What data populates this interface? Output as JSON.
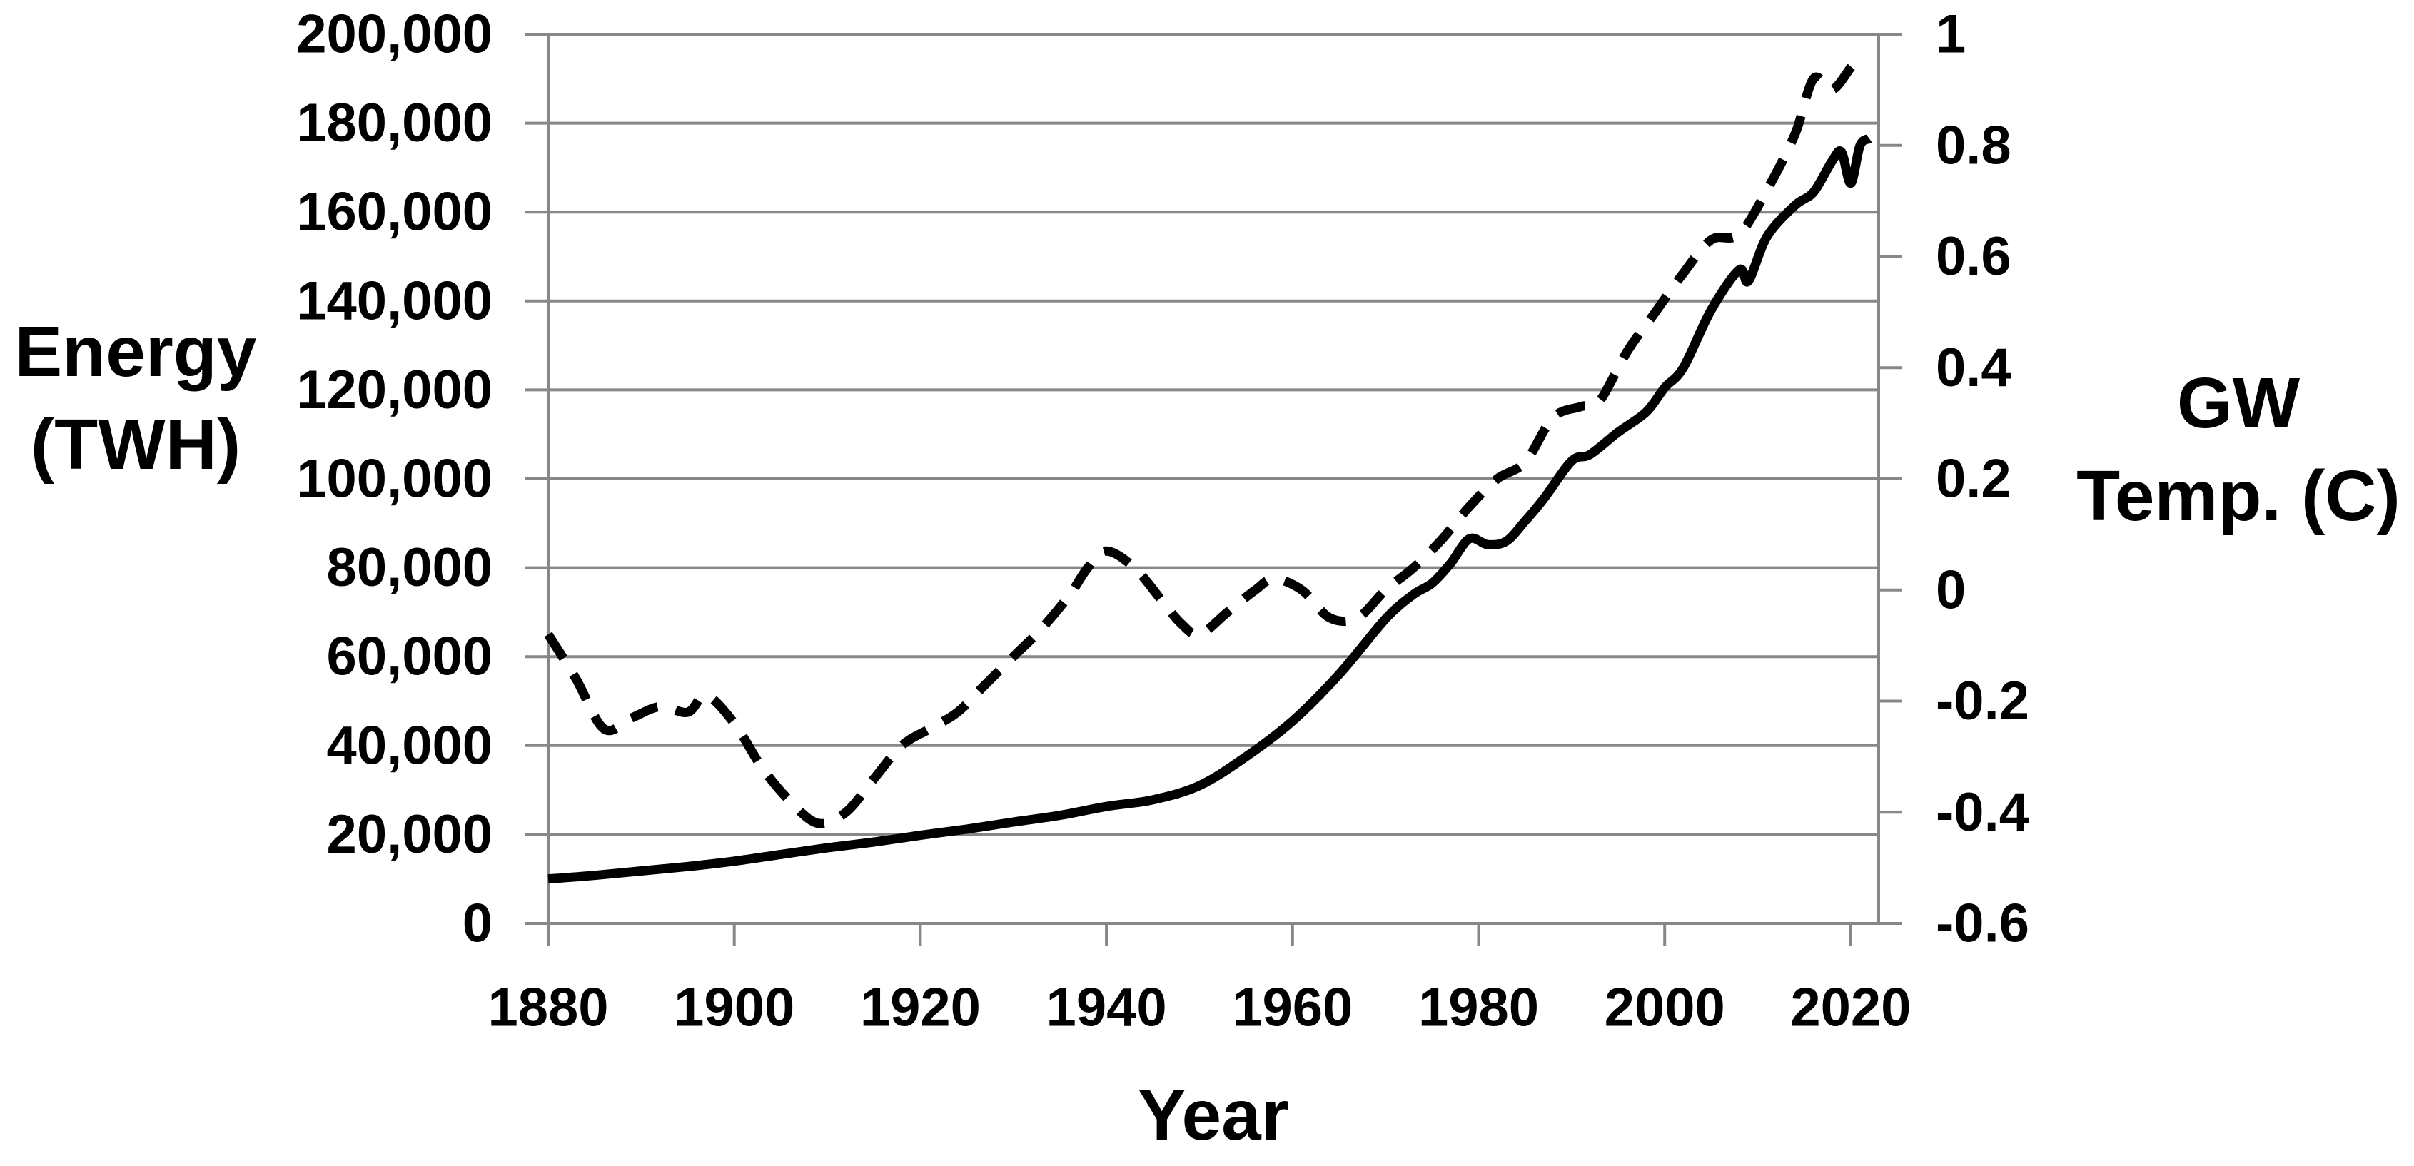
{
  "axes": {
    "left": {
      "title_line1": "Energy",
      "title_line2": "(TWH)",
      "labels": [
        "200,000",
        "180,000",
        "160,000",
        "140,000",
        "120,000",
        "100,000",
        "80,000",
        "60,000",
        "40,000",
        "20,000",
        "0"
      ]
    },
    "right": {
      "title_line1": "GW",
      "title_line2": "Temp. (C)",
      "labels": [
        "1",
        "0.8",
        "0.6",
        "0.4",
        "0.2",
        "0",
        "-0.2",
        "-0.4",
        "-0.6"
      ]
    },
    "x": {
      "title": "Year",
      "labels": [
        "1880",
        "1900",
        "1920",
        "1940",
        "1960",
        "1980",
        "2000",
        "2020"
      ]
    }
  },
  "colors": {
    "background": "#ffffff",
    "grid": "#878787",
    "axis": "#878787",
    "series": "#000000",
    "text": "#000000"
  },
  "chart_data": {
    "type": "line",
    "title": "",
    "xlabel": "Year",
    "left_ylabel": "Energy (TWH)",
    "right_ylabel": "GW Temp. (C)",
    "xlim": [
      1880,
      2023
    ],
    "left_ylim": [
      0,
      200000
    ],
    "right_ylim": [
      -0.6,
      1.0
    ],
    "grid": true,
    "legend": "none",
    "series": [
      {
        "name": "Energy (TWH)",
        "axis": "left",
        "style": "solid",
        "color": "#000000",
        "points": [
          [
            1880,
            10000
          ],
          [
            1885,
            10800
          ],
          [
            1890,
            11800
          ],
          [
            1895,
            12800
          ],
          [
            1900,
            14000
          ],
          [
            1905,
            15500
          ],
          [
            1910,
            17000
          ],
          [
            1915,
            18300
          ],
          [
            1920,
            19800
          ],
          [
            1925,
            21200
          ],
          [
            1930,
            22800
          ],
          [
            1935,
            24300
          ],
          [
            1940,
            26300
          ],
          [
            1945,
            27800
          ],
          [
            1950,
            31000
          ],
          [
            1955,
            37500
          ],
          [
            1960,
            45500
          ],
          [
            1965,
            56000
          ],
          [
            1970,
            68500
          ],
          [
            1973,
            74000
          ],
          [
            1975,
            76500
          ],
          [
            1977,
            81000
          ],
          [
            1979,
            86500
          ],
          [
            1981,
            85200
          ],
          [
            1983,
            86000
          ],
          [
            1985,
            90500
          ],
          [
            1987,
            95500
          ],
          [
            1990,
            104000
          ],
          [
            1992,
            105500
          ],
          [
            1995,
            110500
          ],
          [
            1998,
            115000
          ],
          [
            2000,
            120500
          ],
          [
            2002,
            125000
          ],
          [
            2005,
            138000
          ],
          [
            2008,
            147000
          ],
          [
            2009,
            144500
          ],
          [
            2011,
            154500
          ],
          [
            2014,
            161500
          ],
          [
            2016,
            164500
          ],
          [
            2018,
            171500
          ],
          [
            2019,
            173500
          ],
          [
            2020,
            166500
          ],
          [
            2021,
            175000
          ],
          [
            2022,
            176500
          ]
        ]
      },
      {
        "name": "GW Temp. (C)",
        "axis": "right",
        "style": "dashed",
        "color": "#000000",
        "points": [
          [
            1880,
            -0.08
          ],
          [
            1883,
            -0.16
          ],
          [
            1886,
            -0.25
          ],
          [
            1889,
            -0.23
          ],
          [
            1892,
            -0.21
          ],
          [
            1895,
            -0.22
          ],
          [
            1897,
            -0.19
          ],
          [
            1900,
            -0.24
          ],
          [
            1903,
            -0.32
          ],
          [
            1906,
            -0.38
          ],
          [
            1909,
            -0.42
          ],
          [
            1912,
            -0.4
          ],
          [
            1915,
            -0.34
          ],
          [
            1918,
            -0.28
          ],
          [
            1921,
            -0.25
          ],
          [
            1924,
            -0.22
          ],
          [
            1927,
            -0.17
          ],
          [
            1930,
            -0.12
          ],
          [
            1933,
            -0.07
          ],
          [
            1936,
            -0.01
          ],
          [
            1938,
            0.04
          ],
          [
            1940,
            0.07
          ],
          [
            1943,
            0.04
          ],
          [
            1946,
            -0.02
          ],
          [
            1948,
            -0.06
          ],
          [
            1950,
            -0.08
          ],
          [
            1953,
            -0.04
          ],
          [
            1956,
            0.0
          ],
          [
            1958,
            0.02
          ],
          [
            1961,
            0.0
          ],
          [
            1964,
            -0.05
          ],
          [
            1967,
            -0.05
          ],
          [
            1970,
            0.0
          ],
          [
            1973,
            0.04
          ],
          [
            1976,
            0.09
          ],
          [
            1979,
            0.15
          ],
          [
            1982,
            0.2
          ],
          [
            1985,
            0.23
          ],
          [
            1988,
            0.31
          ],
          [
            1991,
            0.33
          ],
          [
            1993,
            0.34
          ],
          [
            1996,
            0.43
          ],
          [
            1999,
            0.5
          ],
          [
            2002,
            0.57
          ],
          [
            2005,
            0.63
          ],
          [
            2008,
            0.64
          ],
          [
            2011,
            0.72
          ],
          [
            2014,
            0.82
          ],
          [
            2016,
            0.92
          ],
          [
            2018,
            0.9
          ],
          [
            2020,
            0.94
          ],
          [
            2021,
            0.96
          ]
        ]
      }
    ]
  }
}
